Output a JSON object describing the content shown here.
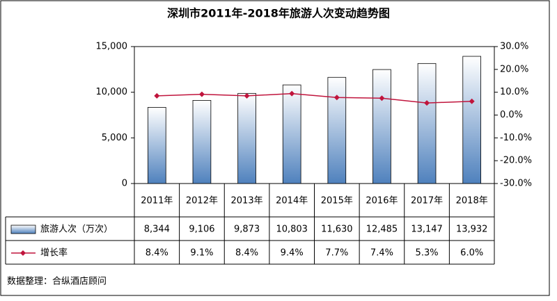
{
  "chart_data": {
    "type": "bar-line",
    "title": "深圳市2011年-2018年旅游人次变动趋势图",
    "categories": [
      "2011年",
      "2012年",
      "2013年",
      "2014年",
      "2015年",
      "2016年",
      "2017年",
      "2018年"
    ],
    "series": [
      {
        "name": "旅游人次（万次）",
        "type": "bar",
        "color": "#4f81bd",
        "values": [
          8344,
          9106,
          9873,
          10803,
          11630,
          12485,
          13147,
          13932
        ],
        "value_labels": [
          "8,344",
          "9,106",
          "9,873",
          "10,803",
          "11,630",
          "12,485",
          "13,147",
          "13,932"
        ]
      },
      {
        "name": "增长率",
        "type": "line",
        "axis": "y2",
        "color": "#c0143c",
        "values": [
          8.4,
          9.1,
          8.4,
          9.4,
          7.7,
          7.4,
          5.3,
          6.0
        ],
        "value_labels": [
          "8.4%",
          "9.1%",
          "8.4%",
          "9.4%",
          "7.7%",
          "7.4%",
          "5.3%",
          "6.0%"
        ]
      }
    ],
    "ylim": [
      0,
      15000
    ],
    "yticks": [
      0,
      {
        "value": 5000,
        "label": "5,000"
      },
      {
        "value": 10000,
        "label": "10,000"
      },
      {
        "value": 15000,
        "label": "15,000"
      }
    ],
    "y2lim": [
      -30,
      30
    ],
    "y2ticks": [
      {
        "value": -30,
        "label": "-30.0%"
      },
      {
        "value": -20,
        "label": "-20.0%"
      },
      {
        "value": -10,
        "label": "-10.0%"
      },
      {
        "value": 0,
        "label": "0.0%"
      },
      {
        "value": 10,
        "label": "10.0%"
      },
      {
        "value": 20,
        "label": "20.0%"
      },
      {
        "value": 30,
        "label": "30.0%"
      }
    ],
    "source": "数据整理：合纵酒店顾问"
  }
}
